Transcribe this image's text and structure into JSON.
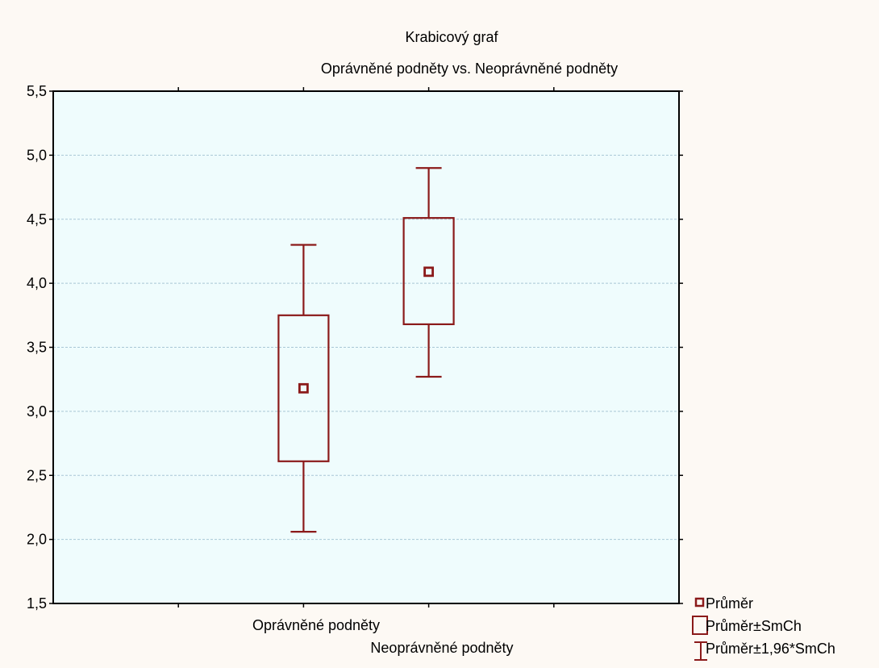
{
  "chart_data": {
    "type": "box",
    "title": "Krabicový graf",
    "subtitle": "Oprávněné podněty vs. Neoprávněné podněty",
    "categories": [
      "Oprávněné podněty",
      "Neoprávněné podněty"
    ],
    "boxes": [
      {
        "mean": 3.18,
        "mean_minus_se": 2.61,
        "mean_plus_se": 3.75,
        "mean_minus_196se": 2.06,
        "mean_plus_196se": 4.3
      },
      {
        "mean": 4.09,
        "mean_minus_se": 3.68,
        "mean_plus_se": 4.51,
        "mean_minus_196se": 3.27,
        "mean_plus_196se": 4.9
      }
    ],
    "ylim": [
      1.5,
      5.5
    ],
    "yticks": [
      "1,5",
      "2,0",
      "2,5",
      "3,0",
      "3,5",
      "4,0",
      "4,5",
      "5,0",
      "5,5"
    ],
    "grid": true,
    "legend_position": "bottom-right",
    "legend": {
      "mean": "Průměr",
      "se": "Průměr±SmCh",
      "ci": "Průměr±1,96*SmCh"
    },
    "colors": {
      "series": "#8b1a1a",
      "plot_background": "#effcfd",
      "page_background": "#fdf9f4",
      "grid": "#a9c7d6"
    }
  }
}
